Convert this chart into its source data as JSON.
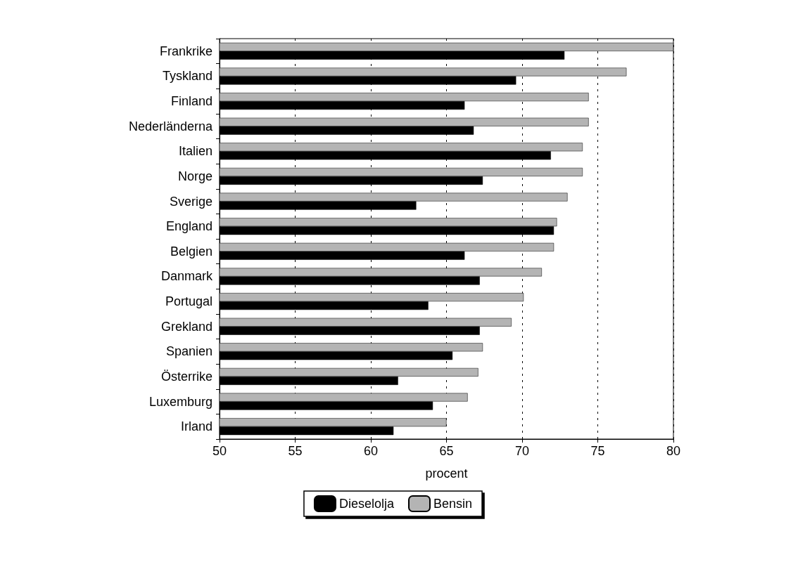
{
  "chart_data": {
    "type": "bar",
    "orientation": "horizontal",
    "xlabel": "procent",
    "categories": [
      "Frankrike",
      "Tyskland",
      "Finland",
      "Nederländerna",
      "Italien",
      "Norge",
      "Sverige",
      "England",
      "Belgien",
      "Danmark",
      "Portugal",
      "Grekland",
      "Spanien",
      "Österrike",
      "Luxemburg",
      "Irland"
    ],
    "series": [
      {
        "name": "Dieselolja",
        "color": "#000000",
        "values": [
          72.8,
          69.6,
          66.2,
          66.8,
          71.9,
          67.4,
          63.0,
          72.1,
          66.2,
          67.2,
          63.8,
          67.2,
          65.4,
          61.8,
          64.1,
          61.5
        ]
      },
      {
        "name": "Bensin",
        "color": "#b4b4b4",
        "values": [
          80.0,
          76.9,
          74.4,
          74.4,
          74.0,
          74.0,
          73.0,
          72.3,
          72.1,
          71.3,
          70.1,
          69.3,
          67.4,
          67.1,
          66.4,
          65.0
        ]
      }
    ],
    "xlim": [
      50,
      80
    ],
    "xticks": [
      50,
      55,
      60,
      65,
      70,
      75,
      80
    ],
    "grid": "x",
    "legend": "bottom"
  }
}
